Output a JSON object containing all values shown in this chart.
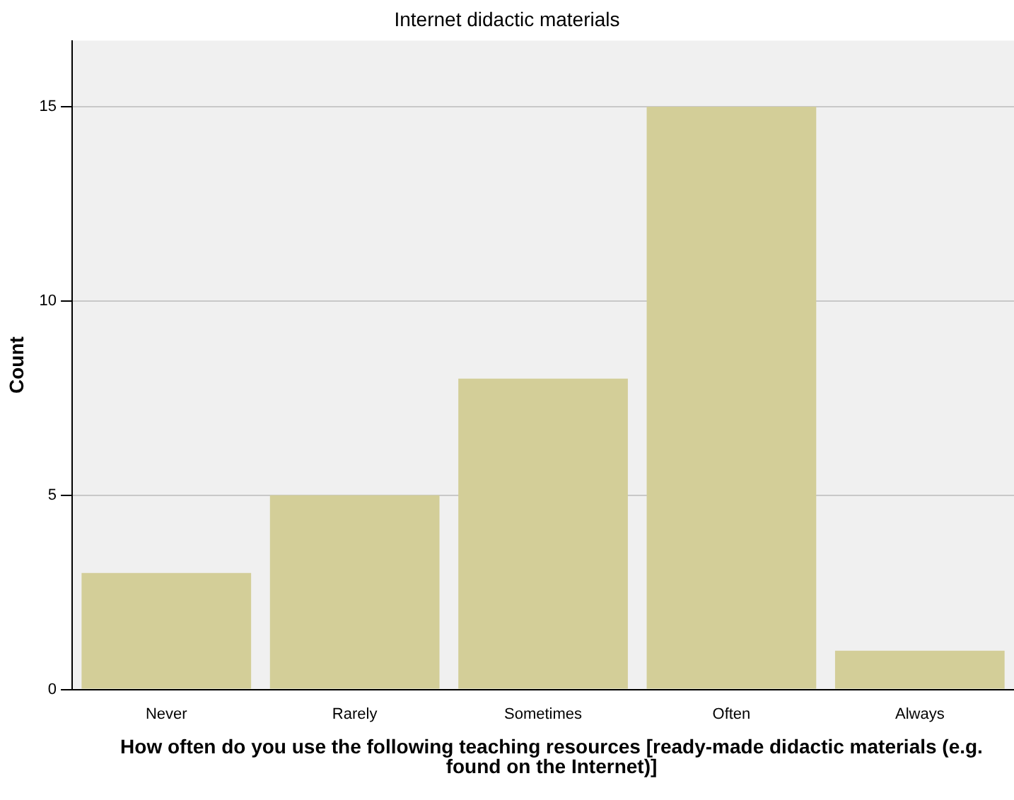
{
  "chart_data": {
    "type": "bar",
    "title": "Internet didactic materials",
    "xlabel": "How often do you use the following teaching resources [ready-made didactic materials (e.g. found on the Internet)]",
    "ylabel": "Count",
    "categories": [
      "Never",
      "Rarely",
      "Sometimes",
      "Often",
      "Always"
    ],
    "values": [
      3,
      5,
      8,
      15,
      1
    ],
    "color": "#d3ce98",
    "ylim": [
      0,
      16.7
    ],
    "yticks": [
      0,
      5,
      10,
      15
    ],
    "grid": "y"
  }
}
